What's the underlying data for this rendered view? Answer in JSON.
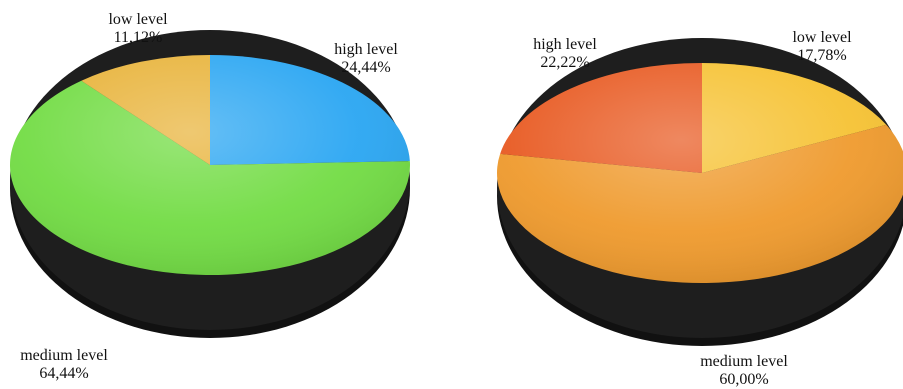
{
  "chart_data": [
    {
      "type": "pie",
      "style": "3d",
      "slices": [
        {
          "label": "high level",
          "value": 24.44,
          "value_text": "24,44%",
          "color": "#2aa6f2"
        },
        {
          "label": "medium level",
          "value": 64.44,
          "value_text": "64,44%",
          "color": "#72dc44"
        },
        {
          "label": "low level",
          "value": 11.12,
          "value_text": "11,12%",
          "color": "#e8b33a"
        }
      ]
    },
    {
      "type": "pie",
      "style": "3d",
      "slices": [
        {
          "label": "low level",
          "value": 17.78,
          "value_text": "17,78%",
          "color": "#f6c233"
        },
        {
          "label": "medium level",
          "value": 60.0,
          "value_text": "60,00%",
          "color": "#ef9a2d"
        },
        {
          "label": "high level",
          "value": 22.22,
          "value_text": "22,22%",
          "color": "#e85a22"
        }
      ]
    }
  ]
}
